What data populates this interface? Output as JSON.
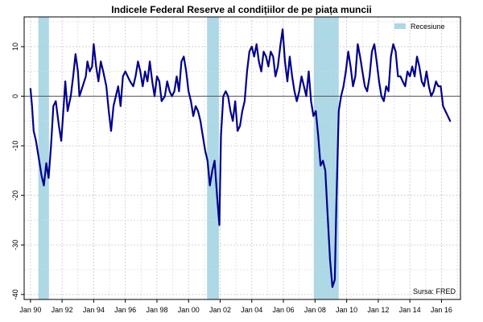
{
  "chart_data": {
    "type": "line",
    "title": "Indicele Federal Reserve al condițiilor de pe piața muncii",
    "xlabel": "",
    "ylabel": "",
    "xlim": [
      1989.6,
      2017.2
    ],
    "ylim": [
      -41,
      16
    ],
    "x_ticks": [
      1990,
      1992,
      1994,
      1996,
      1998,
      2000,
      2002,
      2004,
      2006,
      2008,
      2010,
      2012,
      2014,
      2016
    ],
    "x_tick_labels": [
      "Jan 90",
      "Jan 92",
      "Jan 94",
      "Jan 96",
      "Jan 98",
      "Jan 00",
      "Jan 02",
      "Jan 04",
      "Jan 06",
      "Jan 08",
      "Jan 10",
      "Jan 12",
      "Jan 14",
      "Jan 16"
    ],
    "y_ticks": [
      -40,
      -30,
      -20,
      -10,
      0,
      10
    ],
    "y_tick_labels": [
      "-40",
      "-30",
      "-20",
      "-10",
      "0",
      "10"
    ],
    "grid": true,
    "line_color": "#00008b",
    "recession_color": "#add8e6",
    "recessions": [
      [
        1990.5,
        1991.17
      ],
      [
        2001.17,
        2001.92
      ],
      [
        2007.92,
        2009.5
      ]
    ],
    "legend": {
      "position": "top-right",
      "entries": [
        {
          "label": "Recesiune",
          "color": "#add8e6"
        }
      ]
    },
    "source_note": "Sursa: FRED",
    "series": [
      {
        "points": [
          [
            1990.0,
            1.5
          ],
          [
            1990.1,
            -2
          ],
          [
            1990.2,
            -7
          ],
          [
            1990.35,
            -9
          ],
          [
            1990.5,
            -12
          ],
          [
            1990.7,
            -16
          ],
          [
            1990.85,
            -18
          ],
          [
            1991.0,
            -13.5
          ],
          [
            1991.15,
            -16.5
          ],
          [
            1991.3,
            -10
          ],
          [
            1991.45,
            -2
          ],
          [
            1991.6,
            -1
          ],
          [
            1991.8,
            -6
          ],
          [
            1991.95,
            -9
          ],
          [
            1992.1,
            -2
          ],
          [
            1992.2,
            3
          ],
          [
            1992.35,
            -3
          ],
          [
            1992.55,
            0
          ],
          [
            1992.7,
            4
          ],
          [
            1992.85,
            8.5
          ],
          [
            1993.0,
            5
          ],
          [
            1993.1,
            0
          ],
          [
            1993.3,
            2
          ],
          [
            1993.5,
            4
          ],
          [
            1993.6,
            7
          ],
          [
            1993.75,
            5
          ],
          [
            1993.9,
            6
          ],
          [
            1994.0,
            10.5
          ],
          [
            1994.15,
            6
          ],
          [
            1994.3,
            3
          ],
          [
            1994.45,
            7
          ],
          [
            1994.6,
            5
          ],
          [
            1994.8,
            2
          ],
          [
            1994.95,
            -3
          ],
          [
            1995.1,
            -7
          ],
          [
            1995.25,
            -2
          ],
          [
            1995.4,
            0
          ],
          [
            1995.55,
            2
          ],
          [
            1995.7,
            -2
          ],
          [
            1995.85,
            4
          ],
          [
            1996.0,
            5
          ],
          [
            1996.15,
            4
          ],
          [
            1996.3,
            3
          ],
          [
            1996.5,
            2
          ],
          [
            1996.65,
            4
          ],
          [
            1996.8,
            7
          ],
          [
            1996.95,
            5
          ],
          [
            1997.1,
            2
          ],
          [
            1997.25,
            5
          ],
          [
            1997.4,
            3
          ],
          [
            1997.55,
            7
          ],
          [
            1997.7,
            3
          ],
          [
            1997.85,
            0
          ],
          [
            1998.0,
            4
          ],
          [
            1998.15,
            3
          ],
          [
            1998.3,
            -1
          ],
          [
            1998.5,
            0
          ],
          [
            1998.65,
            3
          ],
          [
            1998.8,
            1
          ],
          [
            1998.95,
            0
          ],
          [
            1999.1,
            1
          ],
          [
            1999.25,
            4
          ],
          [
            1999.4,
            1
          ],
          [
            1999.55,
            7
          ],
          [
            1999.7,
            8
          ],
          [
            1999.85,
            5
          ],
          [
            2000.0,
            1
          ],
          [
            2000.15,
            -1
          ],
          [
            2000.3,
            -4
          ],
          [
            2000.45,
            -2
          ],
          [
            2000.6,
            -3
          ],
          [
            2000.75,
            -5
          ],
          [
            2000.9,
            -8
          ],
          [
            2001.05,
            -11
          ],
          [
            2001.2,
            -13
          ],
          [
            2001.35,
            -18
          ],
          [
            2001.5,
            -15
          ],
          [
            2001.65,
            -13
          ],
          [
            2001.8,
            -20
          ],
          [
            2001.95,
            -26
          ],
          [
            2002.05,
            -8
          ],
          [
            2002.2,
            0
          ],
          [
            2002.35,
            1
          ],
          [
            2002.5,
            0
          ],
          [
            2002.65,
            -3
          ],
          [
            2002.8,
            -5
          ],
          [
            2002.95,
            -1
          ],
          [
            2003.1,
            -7
          ],
          [
            2003.25,
            -6
          ],
          [
            2003.4,
            -3
          ],
          [
            2003.55,
            -1
          ],
          [
            2003.7,
            5
          ],
          [
            2003.85,
            9
          ],
          [
            2004.0,
            10
          ],
          [
            2004.15,
            8
          ],
          [
            2004.3,
            10.5
          ],
          [
            2004.45,
            7
          ],
          [
            2004.6,
            5
          ],
          [
            2004.75,
            9
          ],
          [
            2004.9,
            8
          ],
          [
            2005.05,
            6
          ],
          [
            2005.2,
            9
          ],
          [
            2005.35,
            8
          ],
          [
            2005.5,
            4
          ],
          [
            2005.65,
            6
          ],
          [
            2005.8,
            10
          ],
          [
            2005.95,
            13.5
          ],
          [
            2006.1,
            7
          ],
          [
            2006.25,
            3
          ],
          [
            2006.4,
            8
          ],
          [
            2006.55,
            4
          ],
          [
            2006.7,
            1
          ],
          [
            2006.85,
            -1
          ],
          [
            2007.0,
            1
          ],
          [
            2007.15,
            4
          ],
          [
            2007.3,
            2
          ],
          [
            2007.45,
            0
          ],
          [
            2007.6,
            5
          ],
          [
            2007.75,
            -1
          ],
          [
            2007.9,
            -4
          ],
          [
            2008.05,
            -3
          ],
          [
            2008.2,
            -8
          ],
          [
            2008.35,
            -14
          ],
          [
            2008.5,
            -13
          ],
          [
            2008.65,
            -15
          ],
          [
            2008.8,
            -24
          ],
          [
            2008.95,
            -33
          ],
          [
            2009.1,
            -38.5
          ],
          [
            2009.25,
            -37
          ],
          [
            2009.35,
            -22
          ],
          [
            2009.5,
            -3
          ],
          [
            2009.65,
            0
          ],
          [
            2009.8,
            2
          ],
          [
            2009.95,
            5
          ],
          [
            2010.1,
            9
          ],
          [
            2010.25,
            6
          ],
          [
            2010.4,
            2
          ],
          [
            2010.55,
            4
          ],
          [
            2010.7,
            10.5
          ],
          [
            2010.85,
            8
          ],
          [
            2011.0,
            5
          ],
          [
            2011.15,
            2
          ],
          [
            2011.3,
            1
          ],
          [
            2011.45,
            4
          ],
          [
            2011.6,
            9
          ],
          [
            2011.75,
            10.5
          ],
          [
            2011.9,
            7
          ],
          [
            2012.05,
            3
          ],
          [
            2012.2,
            0
          ],
          [
            2012.35,
            -1
          ],
          [
            2012.5,
            2
          ],
          [
            2012.65,
            1
          ],
          [
            2012.8,
            8
          ],
          [
            2012.95,
            10.5
          ],
          [
            2013.1,
            9
          ],
          [
            2013.25,
            4
          ],
          [
            2013.4,
            4
          ],
          [
            2013.55,
            3
          ],
          [
            2013.7,
            2
          ],
          [
            2013.85,
            5
          ],
          [
            2014.0,
            4
          ],
          [
            2014.15,
            6
          ],
          [
            2014.3,
            4
          ],
          [
            2014.45,
            8
          ],
          [
            2014.6,
            6
          ],
          [
            2014.75,
            3
          ],
          [
            2014.9,
            2
          ],
          [
            2015.05,
            5
          ],
          [
            2015.2,
            2
          ],
          [
            2015.35,
            0
          ],
          [
            2015.5,
            1
          ],
          [
            2015.65,
            3
          ],
          [
            2015.8,
            2
          ],
          [
            2015.95,
            2
          ],
          [
            2016.1,
            -2
          ],
          [
            2016.25,
            -3
          ],
          [
            2016.4,
            -4
          ],
          [
            2016.55,
            -5
          ]
        ]
      }
    ]
  }
}
